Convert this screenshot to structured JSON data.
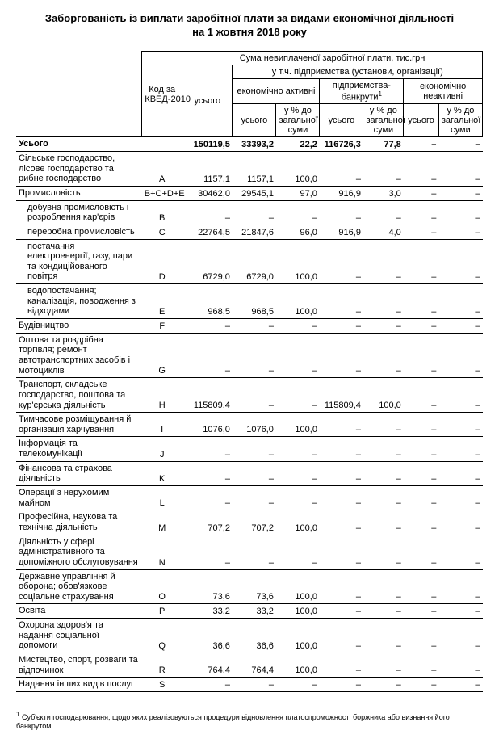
{
  "title_line1": "Заборгованість із виплати заробітної плати за видами економічної діяльності",
  "title_line2": "на 1 жовтня 2018 року",
  "header": {
    "code": "Код за КВЕД-2010",
    "top": "Сума невиплаченої заробітної плати, тис.грн",
    "total": "усього",
    "sub": "у т.ч. підприємства (установи, організації)",
    "g1": "економічно активні",
    "g2_a": "підприємства-",
    "g2_b": "банкрути",
    "g3": "економічно неактивні",
    "col_total": "усього",
    "col_pct": "у % до загальної суми"
  },
  "total_label": "Усього",
  "rows": [
    {
      "label": "Сільське господарство, лісове господарство та рибне господарство",
      "code": "A",
      "v": [
        "1157,1",
        "1157,1",
        "100,0",
        "–",
        "–",
        "–",
        "–"
      ]
    },
    {
      "label": "Промисловість",
      "code": "B+C+D+E",
      "v": [
        "30462,0",
        "29545,1",
        "97,0",
        "916,9",
        "3,0",
        "–",
        "–"
      ]
    },
    {
      "label": "добувна промисловість і розроблення кар'єрів",
      "code": "B",
      "indent": true,
      "v": [
        "–",
        "–",
        "–",
        "–",
        "–",
        "–",
        "–"
      ]
    },
    {
      "label": "переробна промисловість",
      "code": "C",
      "indent": true,
      "v": [
        "22764,5",
        "21847,6",
        "96,0",
        "916,9",
        "4,0",
        "–",
        "–"
      ]
    },
    {
      "label": "постачання електроенергії, газу, пари та кондиційованого повітря",
      "code": "D",
      "indent": true,
      "v": [
        "6729,0",
        "6729,0",
        "100,0",
        "–",
        "–",
        "–",
        "–"
      ]
    },
    {
      "label": "водопостачання; каналізація, поводження з відходами",
      "code": "E",
      "indent": true,
      "v": [
        "968,5",
        "968,5",
        "100,0",
        "–",
        "–",
        "–",
        "–"
      ]
    },
    {
      "label": "Будівництво",
      "code": "F",
      "v": [
        "–",
        "–",
        "–",
        "–",
        "–",
        "–",
        "–"
      ]
    },
    {
      "label": "Оптова та роздрібна торгівля; ремонт автотранспортних засобів і мотоциклів",
      "code": "G",
      "v": [
        "–",
        "–",
        "–",
        "–",
        "–",
        "–",
        "–"
      ]
    },
    {
      "label": "Транспорт, складське господарство, поштова та кур'єрська діяльність",
      "code": "H",
      "v": [
        "115809,4",
        "–",
        "–",
        "115809,4",
        "100,0",
        "–",
        "–"
      ]
    },
    {
      "label": "Тимчасове розміщування й організація харчування",
      "code": "I",
      "v": [
        "1076,0",
        "1076,0",
        "100,0",
        "–",
        "–",
        "–",
        "–"
      ]
    },
    {
      "label": "Інформація та телекомунікації",
      "code": "J",
      "v": [
        "–",
        "–",
        "–",
        "–",
        "–",
        "–",
        "–"
      ]
    },
    {
      "label": "Фінансова та страхова діяльність",
      "code": "K",
      "v": [
        "–",
        "–",
        "–",
        "–",
        "–",
        "–",
        "–"
      ]
    },
    {
      "label": "Операції з нерухомим майном",
      "code": "L",
      "v": [
        "–",
        "–",
        "–",
        "–",
        "–",
        "–",
        "–"
      ]
    },
    {
      "label": "Професійна, наукова та технічна діяльність",
      "code": "M",
      "v": [
        "707,2",
        "707,2",
        "100,0",
        "–",
        "–",
        "–",
        "–"
      ]
    },
    {
      "label": "Діяльність у сфері адміністративного та допоміжного обслуговування",
      "code": "N",
      "v": [
        "–",
        "–",
        "–",
        "–",
        "–",
        "–",
        "–"
      ]
    },
    {
      "label": "Державне управління й оборона; обов'язкове соціальне страхування",
      "code": "O",
      "v": [
        "73,6",
        "73,6",
        "100,0",
        "–",
        "–",
        "–",
        "–"
      ]
    },
    {
      "label": "Освіта",
      "code": "P",
      "v": [
        "33,2",
        "33,2",
        "100,0",
        "–",
        "–",
        "–",
        "–"
      ]
    },
    {
      "label": "Охорона здоров'я та надання соціальної допомоги",
      "code": "Q",
      "v": [
        "36,6",
        "36,6",
        "100,0",
        "–",
        "–",
        "–",
        "–"
      ]
    },
    {
      "label": "Мистецтво, спорт, розваги та відпочинок",
      "code": "R",
      "v": [
        "764,4",
        "764,4",
        "100,0",
        "–",
        "–",
        "–",
        "–"
      ]
    },
    {
      "label": "Надання інших видів послуг",
      "code": "S",
      "v": [
        "–",
        "–",
        "–",
        "–",
        "–",
        "–",
        "–"
      ]
    }
  ],
  "totals": [
    "150119,5",
    "33393,2",
    "22,2",
    "116726,3",
    "77,8",
    "–",
    "–"
  ],
  "footnote_marker": "1",
  "footnote": "Суб'єкти господарювання, щодо яких реалізовуються процедури відновлення платоспроможності боржника або визнання його банкрутом."
}
